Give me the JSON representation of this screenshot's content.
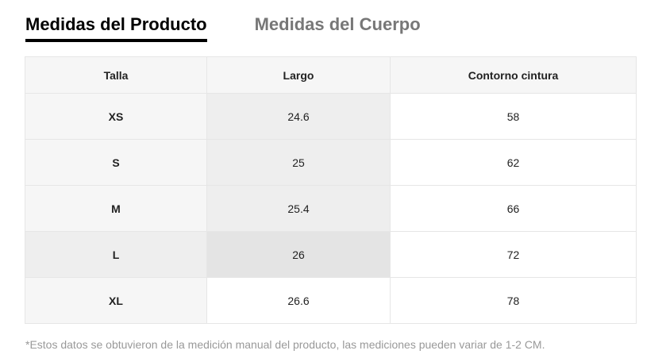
{
  "tabs": [
    {
      "label": "Medidas del Producto",
      "active": true
    },
    {
      "label": "Medidas del Cuerpo",
      "active": false
    }
  ],
  "table": {
    "headers": [
      "Talla",
      "Largo",
      "Contorno cintura"
    ],
    "rows": [
      [
        "XS",
        "24.6",
        "58"
      ],
      [
        "S",
        "25",
        "62"
      ],
      [
        "M",
        "25.4",
        "66"
      ],
      [
        "L",
        "26",
        "72"
      ],
      [
        "XL",
        "26.6",
        "78"
      ]
    ]
  },
  "note": "*Estos datos se obtuvieron de la medición manual del producto, las mediciones pueden variar de 1-2 CM.",
  "colors": {
    "active_tab": "#000000",
    "inactive_tab": "#777777",
    "header_bg": "#f6f6f6",
    "highlight_bg": "#eeeeee",
    "border": "#e6e6e6",
    "note_text": "#999999"
  }
}
